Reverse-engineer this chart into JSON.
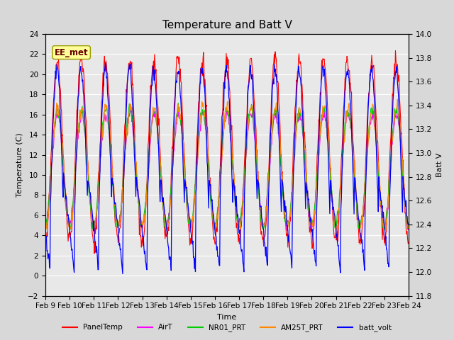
{
  "title": "Temperature and Batt V",
  "xlabel": "Time",
  "ylabel_left": "Temperature (C)",
  "ylabel_right": "Batt V",
  "annotation": "EE_met",
  "ylim_left": [
    -2,
    24
  ],
  "ylim_right": [
    11.8,
    14.0
  ],
  "yticks_left": [
    -2,
    0,
    2,
    4,
    6,
    8,
    10,
    12,
    14,
    16,
    18,
    20,
    22,
    24
  ],
  "yticks_right": [
    11.8,
    12.0,
    12.2,
    12.4,
    12.6,
    12.8,
    13.0,
    13.2,
    13.4,
    13.6,
    13.8,
    14.0
  ],
  "xtick_labels": [
    "Feb 9",
    "Feb 10",
    "Feb 11",
    "Feb 12",
    "Feb 13",
    "Feb 14",
    "Feb 15",
    "Feb 16",
    "Feb 17",
    "Feb 18",
    "Feb 19",
    "Feb 20",
    "Feb 21",
    "Feb 22",
    "Feb 23",
    "Feb 24"
  ],
  "n_days": 15,
  "colors": {
    "PanelTemp": "#ff0000",
    "AirT": "#ff00ff",
    "NR01_PRT": "#00cc00",
    "AM25T_PRT": "#ff8800",
    "batt_volt": "#0000ff"
  },
  "legend_labels": [
    "PanelTemp",
    "AirT",
    "NR01_PRT",
    "AM25T_PRT",
    "batt_volt"
  ],
  "background_color": "#d8d8d8",
  "plot_bg_color": "#e8e8e8",
  "grid_color": "#ffffff",
  "title_fontsize": 11,
  "label_fontsize": 8,
  "tick_fontsize": 7.5,
  "linewidth": 0.8
}
